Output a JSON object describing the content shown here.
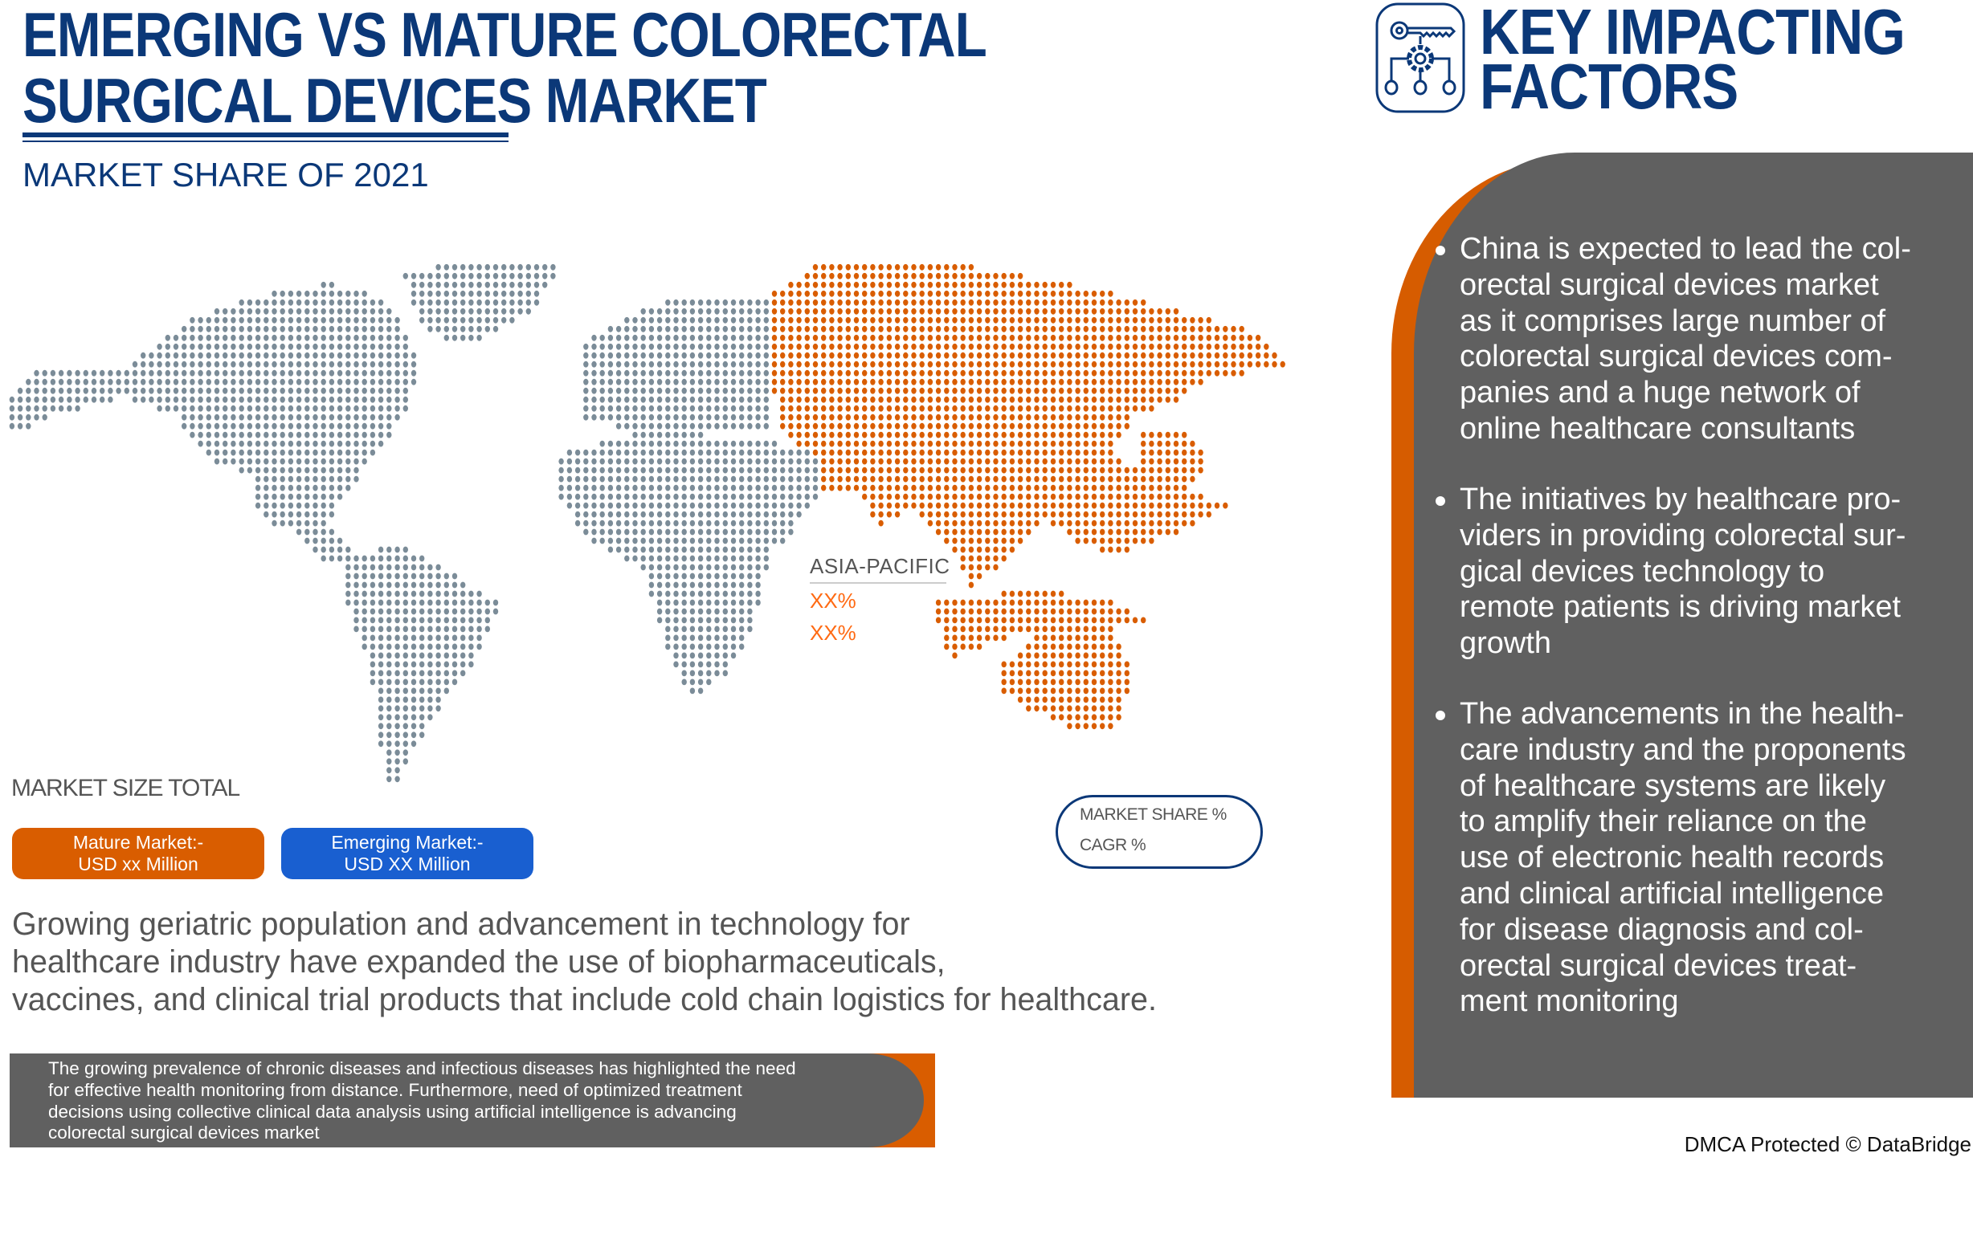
{
  "header": {
    "title_lines": [
      "EMERGING VS MATURE COLORECTAL",
      "SURGICAL DEVICES MARKET"
    ],
    "subtitle": "MARKET SHARE OF 2021"
  },
  "map": {
    "highlight_region": "ASIA-PACIFIC",
    "region_label": "ASIA-PACIFIC",
    "values": [
      "XX%",
      "XX%"
    ],
    "colors": {
      "highlight": "#d95d00",
      "other": "#7b8c98",
      "label_value": "#ff6a13"
    }
  },
  "market_size": {
    "label": "MARKET SIZE TOTAL",
    "mature": {
      "title": "Mature Market:-",
      "value": "USD xx Million",
      "color": "#d95d00"
    },
    "emerging": {
      "title": "Emerging Market:-",
      "value": "USD XX Million",
      "color": "#195fd0"
    }
  },
  "legend": {
    "items": [
      "MARKET SHARE %",
      "CAGR %"
    ]
  },
  "summary_lines": [
    "Growing geriatric population and advancement in technology for",
    "healthcare industry have expanded the use of biopharmaceuticals,",
    "vaccines, and clinical trial products that include cold chain logistics for healthcare."
  ],
  "note_lines": [
    "The growing prevalence of chronic diseases and infectious diseases has highlighted the need",
    "for effective health monitoring from distance. Furthermore, need of optimized treatment",
    "decisions using collective clinical data analysis  using artificial intelligence is advancing",
    "colorectal surgical devices market"
  ],
  "key_factors": {
    "icon": "key-gear-network-icon",
    "title_lines": [
      "KEY IMPACTING",
      "FACTORS"
    ],
    "items": [
      {
        "lines": [
          "China is expected to lead the col-",
          "orectal surgical devices market",
          "as it comprises large number of",
          "colorectal surgical devices com-",
          "panies and a huge network of",
          "online healthcare consultants"
        ]
      },
      {
        "lines": [
          "The initiatives by healthcare pro-",
          "viders in providing colorectal sur-",
          "gical devices technology to",
          "remote patients is driving market",
          "growth"
        ]
      },
      {
        "lines": [
          "The advancements in the health-",
          "care industry and the proponents",
          "of healthcare systems are likely",
          "to amplify their reliance on the",
          "use of electronic health records",
          "and clinical artificial intelligence",
          "for disease diagnosis and col-",
          "orectal surgical devices treat-",
          "ment monitoring"
        ]
      }
    ]
  },
  "footer": {
    "copyright": "DMCA Protected © DataBridge"
  }
}
